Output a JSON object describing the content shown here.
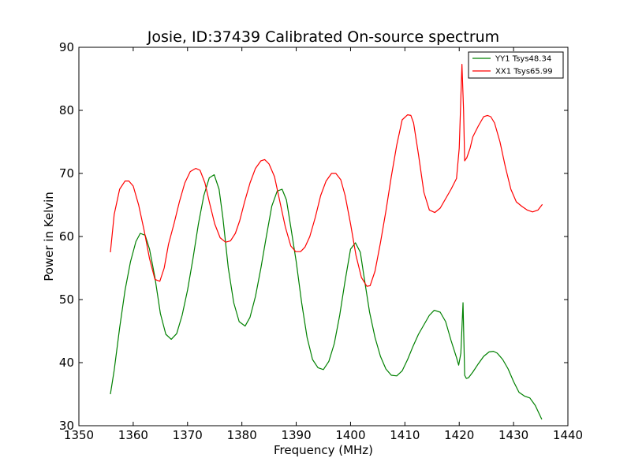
{
  "chart_data": {
    "type": "line",
    "title": "Josie, ID:37439 Calibrated On-source spectrum",
    "xlabel": "Frequency (MHz)",
    "ylabel": "Power in Kelvin",
    "xlim": [
      1350,
      1440
    ],
    "ylim": [
      30,
      90
    ],
    "xticks": [
      1350,
      1360,
      1370,
      1380,
      1390,
      1400,
      1410,
      1420,
      1430,
      1440
    ],
    "yticks": [
      30,
      40,
      50,
      60,
      70,
      80,
      90
    ],
    "grid": false,
    "legend_position": "top-right",
    "series": [
      {
        "name": "YY1 Tsys48.34",
        "color": "#008000",
        "x": [
          1355.8,
          1356.5,
          1357.5,
          1358.5,
          1359.5,
          1360.5,
          1361.3,
          1362.2,
          1363.0,
          1364.0,
          1365.0,
          1366.0,
          1367.0,
          1368.0,
          1369.0,
          1370.0,
          1371.0,
          1372.0,
          1373.0,
          1374.0,
          1374.9,
          1375.8,
          1376.5,
          1377.5,
          1378.5,
          1379.5,
          1380.6,
          1381.5,
          1382.5,
          1383.5,
          1384.5,
          1385.5,
          1386.5,
          1387.4,
          1388.2,
          1389.0,
          1390.0,
          1391.0,
          1392.0,
          1393.0,
          1394.0,
          1395.0,
          1396.0,
          1397.0,
          1398.0,
          1399.0,
          1400.0,
          1400.9,
          1401.8,
          1402.5,
          1403.5,
          1404.5,
          1405.5,
          1406.5,
          1407.5,
          1408.5,
          1409.5,
          1410.5,
          1411.5,
          1412.5,
          1413.5,
          1414.5,
          1415.4,
          1416.5,
          1417.5,
          1418.5,
          1419.5,
          1419.9,
          1420.3,
          1420.7,
          1421.0,
          1421.3,
          1421.7,
          1422.5,
          1423.5,
          1424.5,
          1425.5,
          1426.3,
          1427.0,
          1428.0,
          1429.0,
          1430.0,
          1431.0,
          1432.0,
          1433.0,
          1434.0,
          1435.2
        ],
        "y": [
          35,
          38.8,
          45.5,
          51.5,
          56,
          59.2,
          60.5,
          60.2,
          58,
          53.5,
          47.8,
          44.5,
          43.7,
          44.6,
          47.5,
          51.5,
          56.5,
          62,
          66.5,
          69.3,
          69.8,
          67.5,
          63,
          55,
          49.5,
          46.5,
          45.8,
          47.2,
          50.5,
          55,
          60,
          64.8,
          67.2,
          67.5,
          65.8,
          61.5,
          56,
          49.5,
          44,
          40.5,
          39.2,
          38.9,
          40.2,
          43,
          47.5,
          53,
          58,
          59,
          57.5,
          53.5,
          48,
          44,
          41,
          39,
          38,
          37.9,
          38.7,
          40.5,
          42.6,
          44.5,
          46,
          47.5,
          48.3,
          48,
          46.5,
          43.5,
          40.8,
          39.6,
          41.5,
          49.5,
          38,
          37.5,
          37.6,
          38.5,
          39.8,
          41,
          41.7,
          41.8,
          41.5,
          40.5,
          39,
          37,
          35.3,
          34.7,
          34.4,
          33.2,
          31
        ]
      },
      {
        "name": "XX1 Tsys65.99",
        "color": "#ff0000",
        "x": [
          1355.8,
          1356.5,
          1357.5,
          1358.5,
          1359.2,
          1360.0,
          1361.0,
          1362.0,
          1363.0,
          1364.0,
          1364.9,
          1365.7,
          1366.5,
          1367.5,
          1368.5,
          1369.5,
          1370.5,
          1371.5,
          1372.3,
          1373.2,
          1374.0,
          1375.0,
          1376.0,
          1377.0,
          1377.9,
          1378.8,
          1379.6,
          1380.5,
          1381.5,
          1382.5,
          1383.5,
          1384.2,
          1385.0,
          1386.0,
          1387.0,
          1388.0,
          1389.0,
          1389.9,
          1390.8,
          1391.6,
          1392.5,
          1393.5,
          1394.5,
          1395.5,
          1396.5,
          1397.3,
          1398.2,
          1399.0,
          1400.0,
          1401.0,
          1402.0,
          1403.0,
          1403.6,
          1404.5,
          1405.5,
          1406.5,
          1407.5,
          1408.5,
          1409.5,
          1410.5,
          1411.1,
          1411.6,
          1412.5,
          1413.5,
          1414.5,
          1415.5,
          1416.5,
          1417.5,
          1418.5,
          1419.5,
          1420.0,
          1420.5,
          1420.8,
          1421.0,
          1421.4,
          1422.0,
          1422.5,
          1423.5,
          1424.5,
          1425.2,
          1425.8,
          1426.5,
          1427.5,
          1428.5,
          1429.5,
          1430.5,
          1431.5,
          1432.5,
          1433.5,
          1434.5,
          1435.3
        ],
        "y": [
          57.5,
          63.5,
          67.5,
          68.8,
          68.8,
          68,
          65,
          61,
          56.5,
          53.2,
          52.9,
          55,
          58.8,
          62,
          65.5,
          68.5,
          70.3,
          70.8,
          70.5,
          68.5,
          65.5,
          62,
          59.8,
          59.1,
          59.3,
          60.5,
          62.5,
          65.5,
          68.5,
          70.8,
          72,
          72.2,
          71.5,
          69.5,
          65.5,
          61.5,
          58.5,
          57.6,
          57.6,
          58.3,
          60,
          63,
          66.5,
          68.8,
          70,
          70,
          69,
          66.5,
          62,
          57,
          53.5,
          52.1,
          52.2,
          54.5,
          59,
          64,
          69.5,
          74.5,
          78.5,
          79.3,
          79.2,
          78,
          73,
          67,
          64.2,
          63.8,
          64.5,
          66,
          67.5,
          69.2,
          74,
          87.3,
          80,
          72,
          72.5,
          74,
          75.8,
          77.5,
          79,
          79.2,
          79,
          78,
          75,
          71,
          67.5,
          65.5,
          64.8,
          64.2,
          63.9,
          64.2,
          65.1
        ]
      }
    ]
  }
}
